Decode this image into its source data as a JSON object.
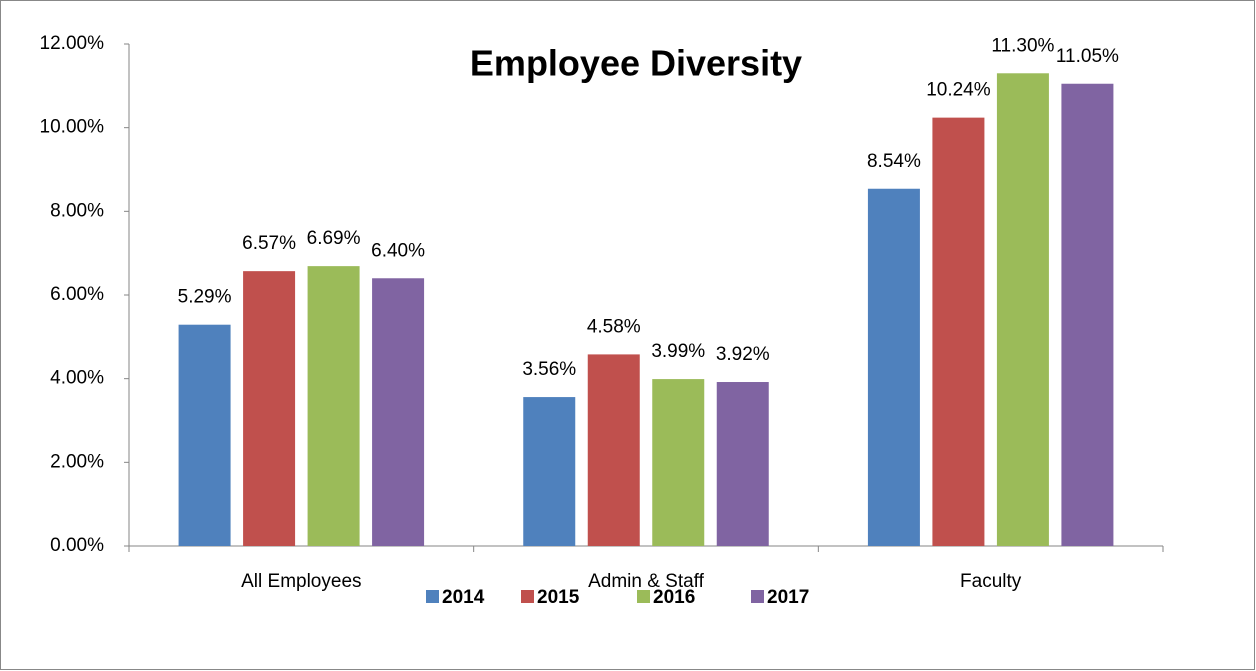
{
  "chart_data": {
    "type": "bar",
    "title": "Employee Diversity",
    "categories": [
      "All Employees",
      "Admin & Staff",
      "Faculty"
    ],
    "series": [
      {
        "name": "2014",
        "color": "#4f81bd",
        "values": [
          5.29,
          3.56,
          8.54
        ],
        "value_labels": [
          "5.29%",
          "3.56%",
          "8.54%"
        ]
      },
      {
        "name": "2015",
        "color": "#c0504d",
        "values": [
          6.57,
          4.58,
          10.24
        ],
        "value_labels": [
          "6.57%",
          "4.58%",
          "10.24%"
        ]
      },
      {
        "name": "2016",
        "color": "#9bbb59",
        "values": [
          6.69,
          3.99,
          11.3
        ],
        "value_labels": [
          "6.69%",
          "3.99%",
          "11.30%"
        ]
      },
      {
        "name": "2017",
        "color": "#8064a2",
        "values": [
          6.4,
          3.92,
          11.05
        ],
        "value_labels": [
          "6.40%",
          "3.92%",
          "11.05%"
        ]
      }
    ],
    "ylim": [
      0,
      12
    ],
    "yticks": [
      {
        "value": 0,
        "label": "0.00%"
      },
      {
        "value": 2,
        "label": "2.00%"
      },
      {
        "value": 4,
        "label": "4.00%"
      },
      {
        "value": 6,
        "label": "6.00%"
      },
      {
        "value": 8,
        "label": "8.00%"
      },
      {
        "value": 10,
        "label": "10.00%"
      },
      {
        "value": 12,
        "label": "12.00%"
      }
    ],
    "grid": false,
    "legend": "bottom"
  }
}
